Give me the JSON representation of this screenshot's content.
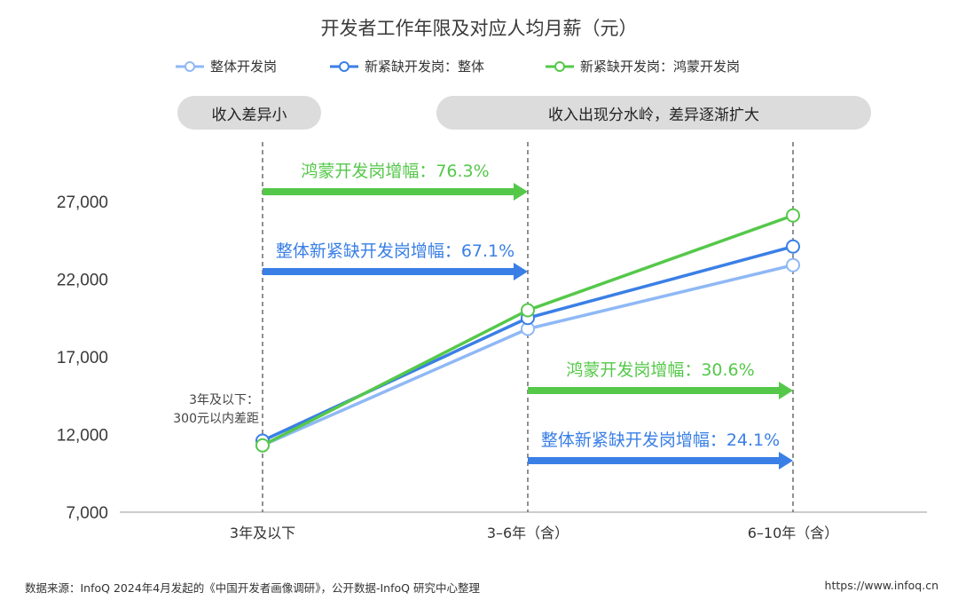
{
  "chart_data": {
    "type": "line",
    "title": "开发者工作年限及对应人均月薪（元）",
    "categories": [
      "3年及以下",
      "3–6年（含）",
      "6–10年（含）"
    ],
    "ylim": [
      7000,
      27000
    ],
    "yticks": [
      "7,000",
      "12,000",
      "17,000",
      "22,000",
      "27,000"
    ],
    "ytick_values": [
      7000,
      12000,
      17000,
      22000,
      27000
    ],
    "legend_position": "top",
    "series": [
      {
        "name": "整体开发岗",
        "color": "#8fb8f5",
        "values": [
          11300,
          18800,
          22900
        ]
      },
      {
        "name": "新紧缺开发岗：整体",
        "color": "#3a7fe6",
        "values": [
          11600,
          19500,
          24100
        ]
      },
      {
        "name": "新紧缺开发岗：鸿蒙开发岗",
        "color": "#55c84a",
        "values": [
          11300,
          20000,
          26100
        ]
      }
    ],
    "banners": [
      "收入差异小",
      "收入出现分水岭，差异逐渐扩大"
    ],
    "annotations": [
      {
        "text": "鸿蒙开发岗增幅：76.3%",
        "color": "#55c84a",
        "from": 0,
        "to": 1
      },
      {
        "text": "整体新紧缺开发岗增幅：67.1%",
        "color": "#3a7fe6",
        "from": 0,
        "to": 1
      },
      {
        "text": "鸿蒙开发岗增幅：30.6%",
        "color": "#55c84a",
        "from": 1,
        "to": 2
      },
      {
        "text": "整体新紧缺开发岗增幅：24.1%",
        "color": "#3a7fe6",
        "from": 1,
        "to": 2
      }
    ],
    "note_lines": [
      "3年及以下：",
      "300元以内差距"
    ]
  },
  "footer": {
    "source": "数据来源：InfoQ 2024年4月发起的《中国开发者画像调研》，公开数据-InfoQ 研究中心整理",
    "url": "https://www.infoq.cn"
  }
}
